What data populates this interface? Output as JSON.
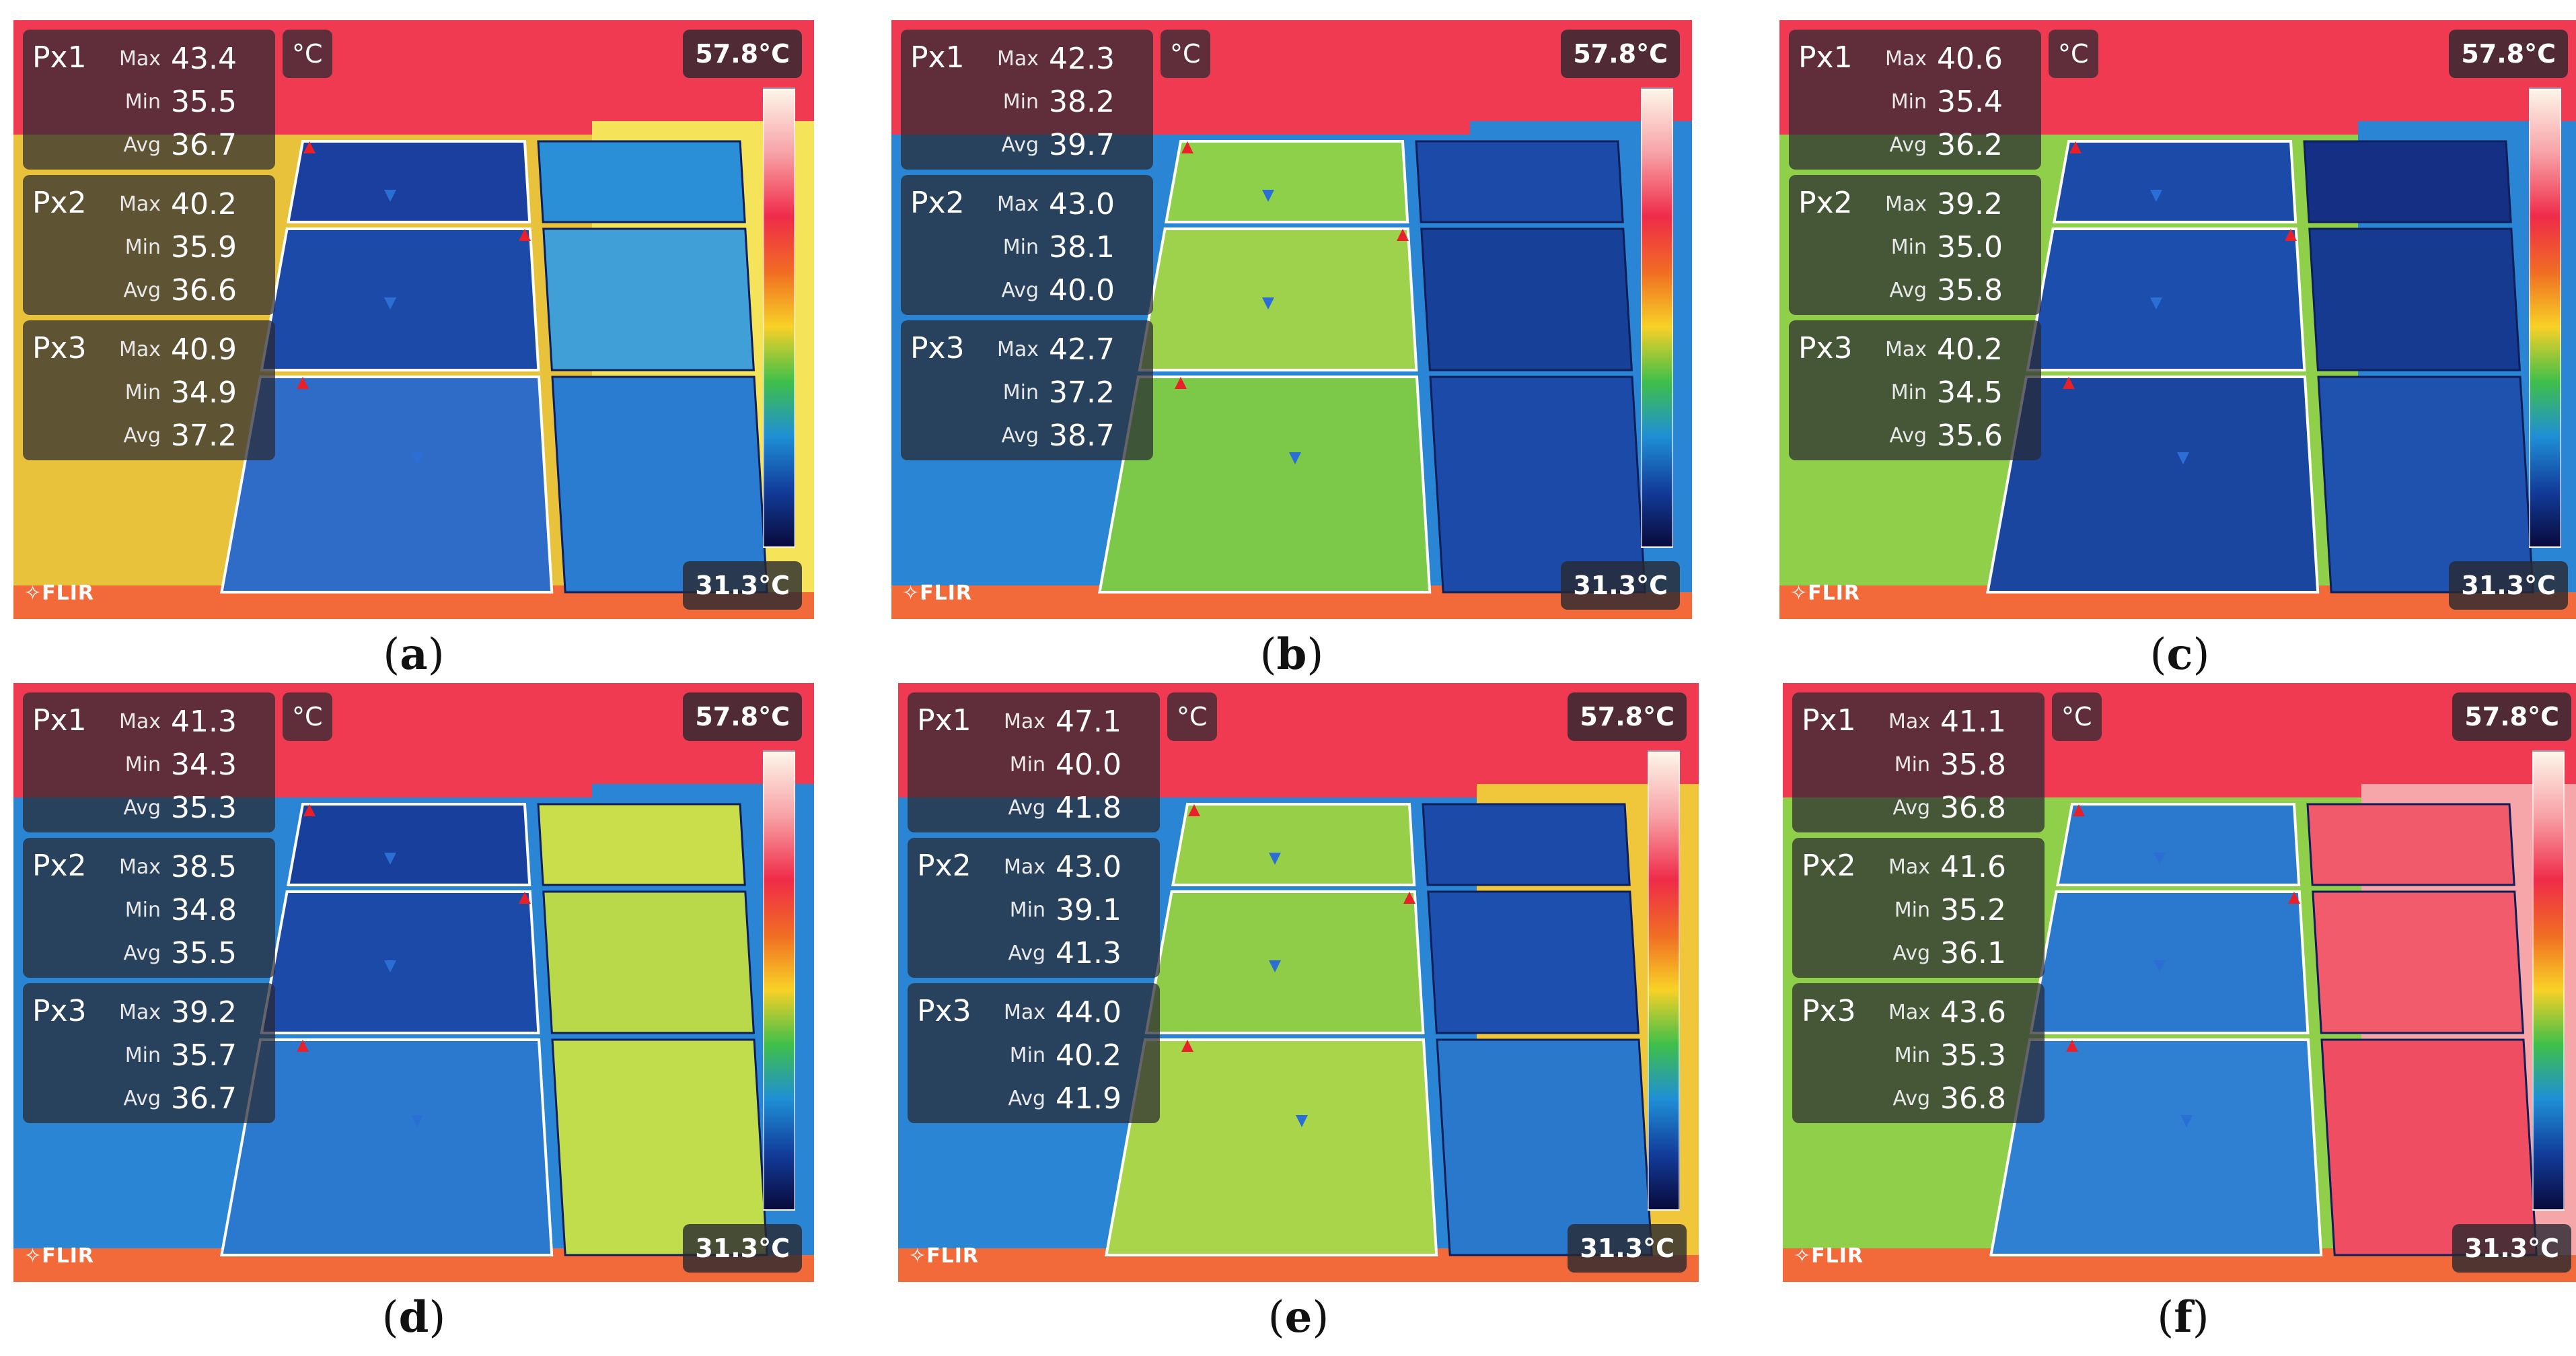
{
  "scale": {
    "max_label": "57.8°C",
    "min_label": "31.3°C",
    "unit": "°C",
    "brand": "FLIR"
  },
  "panels": [
    {
      "caption": "a",
      "cells": [
        {
          "name": "Px1",
          "max": "43.4",
          "min": "35.5",
          "avg": "36.7"
        },
        {
          "name": "Px2",
          "max": "40.2",
          "min": "35.9",
          "avg": "36.6"
        },
        {
          "name": "Px3",
          "max": "40.9",
          "min": "34.9",
          "avg": "37.2"
        }
      ]
    },
    {
      "caption": "b",
      "cells": [
        {
          "name": "Px1",
          "max": "42.3",
          "min": "38.2",
          "avg": "39.7"
        },
        {
          "name": "Px2",
          "max": "43.0",
          "min": "38.1",
          "avg": "40.0"
        },
        {
          "name": "Px3",
          "max": "42.7",
          "min": "37.2",
          "avg": "38.7"
        }
      ]
    },
    {
      "caption": "c",
      "cells": [
        {
          "name": "Px1",
          "max": "40.6",
          "min": "35.4",
          "avg": "36.2"
        },
        {
          "name": "Px2",
          "max": "39.2",
          "min": "35.0",
          "avg": "35.8"
        },
        {
          "name": "Px3",
          "max": "40.2",
          "min": "34.5",
          "avg": "35.6"
        }
      ]
    },
    {
      "caption": "d",
      "cells": [
        {
          "name": "Px1",
          "max": "41.3",
          "min": "34.3",
          "avg": "35.3"
        },
        {
          "name": "Px2",
          "max": "38.5",
          "min": "34.8",
          "avg": "35.5"
        },
        {
          "name": "Px3",
          "max": "39.2",
          "min": "35.7",
          "avg": "36.7"
        }
      ]
    },
    {
      "caption": "e",
      "cells": [
        {
          "name": "Px1",
          "max": "47.1",
          "min": "40.0",
          "avg": "41.8"
        },
        {
          "name": "Px2",
          "max": "43.0",
          "min": "39.1",
          "avg": "41.3"
        },
        {
          "name": "Px3",
          "max": "44.0",
          "min": "40.2",
          "avg": "41.9"
        }
      ]
    },
    {
      "caption": "f",
      "cells": [
        {
          "name": "Px1",
          "max": "41.1",
          "min": "35.8",
          "avg": "36.8"
        },
        {
          "name": "Px2",
          "max": "41.6",
          "min": "35.2",
          "avg": "36.1"
        },
        {
          "name": "Px3",
          "max": "43.6",
          "min": "35.3",
          "avg": "36.8"
        }
      ]
    }
  ],
  "labels": {
    "max": "Max",
    "min": "Min",
    "avg": "Avg"
  }
}
